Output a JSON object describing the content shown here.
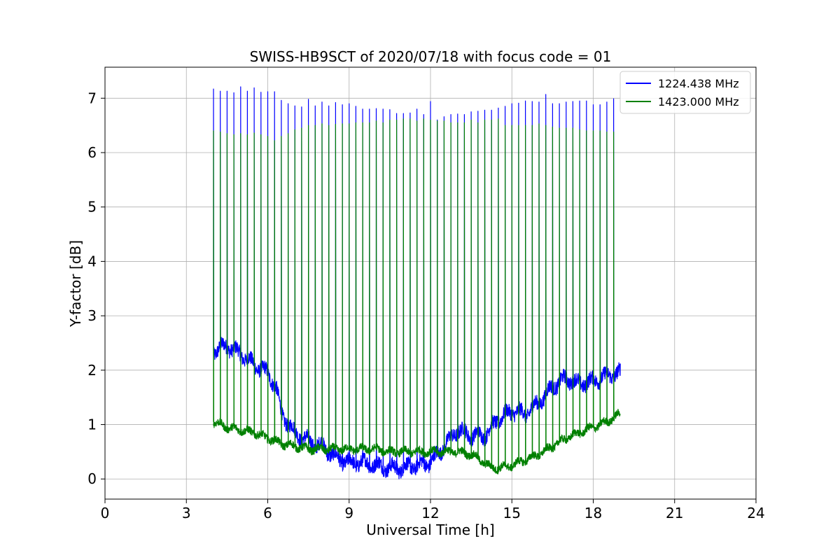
{
  "chart_data": {
    "type": "line",
    "title": "SWISS-HB9SCT of 2020/07/18 with focus code = 01",
    "xlabel": "Universal Time [h]",
    "ylabel": "Y-factor [dB]",
    "xlim": [
      0,
      24
    ],
    "ylim": [
      -0.37,
      7.57
    ],
    "xticks": [
      0,
      3,
      6,
      9,
      12,
      15,
      18,
      21,
      24
    ],
    "yticks": [
      0,
      1,
      2,
      3,
      4,
      5,
      6,
      7
    ],
    "grid": true,
    "legend_position": "top-right",
    "series": [
      {
        "name": "1224.438 MHz",
        "color": "#0000ff",
        "baseline": {
          "x": [
            4.0,
            4.5,
            5.0,
            5.5,
            6.0,
            6.3,
            6.5,
            7.0,
            7.5,
            8.0,
            8.5,
            9.0,
            9.5,
            10.0,
            10.5,
            11.0,
            11.5,
            12.0,
            12.5,
            13.0,
            13.5,
            14.0,
            14.5,
            15.0,
            15.5,
            16.0,
            16.5,
            17.0,
            17.5,
            18.0,
            18.5,
            19.0
          ],
          "y": [
            2.35,
            2.45,
            2.3,
            2.1,
            1.95,
            1.7,
            1.2,
            0.85,
            0.7,
            0.6,
            0.4,
            0.3,
            0.3,
            0.25,
            0.2,
            0.2,
            0.25,
            0.3,
            0.6,
            0.9,
            0.8,
            0.8,
            1.1,
            1.25,
            1.2,
            1.4,
            1.7,
            1.85,
            1.75,
            1.8,
            1.9,
            1.95
          ]
        },
        "peaks": {
          "x": [
            4.0,
            4.25,
            4.5,
            4.75,
            5.0,
            5.25,
            5.5,
            5.75,
            6.0,
            6.25,
            6.5,
            6.75,
            7.0,
            7.25,
            7.5,
            7.75,
            8.0,
            8.25,
            8.5,
            8.75,
            9.0,
            9.25,
            9.5,
            9.75,
            10.0,
            10.25,
            10.5,
            10.75,
            11.0,
            11.25,
            11.5,
            11.75,
            12.0,
            12.25,
            12.5,
            12.75,
            13.0,
            13.25,
            13.5,
            13.75,
            14.0,
            14.25,
            14.5,
            14.75,
            15.0,
            15.25,
            15.5,
            15.75,
            16.0,
            16.25,
            16.5,
            16.75,
            17.0,
            17.25,
            17.5,
            17.75,
            18.0,
            18.25,
            18.5,
            18.75
          ],
          "y": [
            7.17,
            7.13,
            7.13,
            7.1,
            7.21,
            7.13,
            7.19,
            7.11,
            7.12,
            7.12,
            6.96,
            6.9,
            6.86,
            6.84,
            6.98,
            6.86,
            6.93,
            6.86,
            6.92,
            6.88,
            6.9,
            6.85,
            6.8,
            6.8,
            6.81,
            6.8,
            6.79,
            6.72,
            6.72,
            6.73,
            6.8,
            6.7,
            6.94,
            6.6,
            6.66,
            6.7,
            6.71,
            6.7,
            6.75,
            6.76,
            6.78,
            6.78,
            6.82,
            6.85,
            6.9,
            6.91,
            6.95,
            6.94,
            6.93,
            7.07,
            6.9,
            6.9,
            6.93,
            6.94,
            6.95,
            6.95,
            6.88,
            6.88,
            6.93,
            6.99
          ]
        }
      },
      {
        "name": "1423.000 MHz",
        "color": "#008000",
        "baseline": {
          "x": [
            4.0,
            4.5,
            5.0,
            5.5,
            6.0,
            6.5,
            7.0,
            7.5,
            8.0,
            8.5,
            9.0,
            9.5,
            10.0,
            10.5,
            11.0,
            11.5,
            12.0,
            12.5,
            13.0,
            13.5,
            14.0,
            14.25,
            14.5,
            15.0,
            15.5,
            16.0,
            16.5,
            17.0,
            17.5,
            18.0,
            18.5,
            19.0
          ],
          "y": [
            1.05,
            0.95,
            0.9,
            0.85,
            0.75,
            0.65,
            0.6,
            0.55,
            0.55,
            0.55,
            0.55,
            0.55,
            0.55,
            0.5,
            0.5,
            0.5,
            0.5,
            0.5,
            0.5,
            0.45,
            0.3,
            0.2,
            0.2,
            0.25,
            0.35,
            0.45,
            0.6,
            0.75,
            0.85,
            0.95,
            1.05,
            1.2
          ]
        },
        "peaks": {
          "x": [
            4.0,
            4.25,
            4.5,
            4.75,
            5.0,
            5.25,
            5.5,
            5.75,
            6.0,
            6.25,
            6.5,
            6.75,
            7.0,
            7.25,
            7.5,
            7.75,
            8.0,
            8.25,
            8.5,
            8.75,
            9.0,
            9.25,
            9.5,
            9.75,
            10.0,
            10.25,
            10.5,
            10.75,
            11.0,
            11.25,
            11.5,
            11.75,
            12.0,
            12.25,
            12.5,
            12.75,
            13.0,
            13.25,
            13.5,
            13.75,
            14.0,
            14.25,
            14.5,
            14.75,
            15.0,
            15.25,
            15.5,
            15.75,
            16.0,
            16.25,
            16.5,
            16.75,
            17.0,
            17.25,
            17.5,
            17.75,
            18.0,
            18.25,
            18.5,
            18.75
          ],
          "y": [
            6.4,
            6.38,
            6.35,
            6.33,
            6.35,
            6.33,
            6.36,
            6.33,
            6.3,
            6.22,
            6.3,
            6.35,
            6.42,
            6.45,
            6.5,
            6.5,
            6.53,
            6.5,
            6.52,
            6.53,
            6.53,
            6.55,
            6.55,
            6.55,
            6.58,
            6.55,
            6.6,
            6.6,
            6.62,
            6.62,
            6.58,
            6.62,
            6.6,
            6.58,
            6.58,
            6.55,
            6.55,
            6.55,
            6.6,
            6.55,
            6.6,
            6.6,
            6.62,
            6.5,
            6.5,
            6.5,
            6.5,
            6.5,
            6.53,
            6.5,
            6.47,
            6.45,
            6.45,
            6.45,
            6.42,
            6.4,
            6.4,
            6.4,
            6.38,
            6.38
          ]
        }
      }
    ]
  }
}
